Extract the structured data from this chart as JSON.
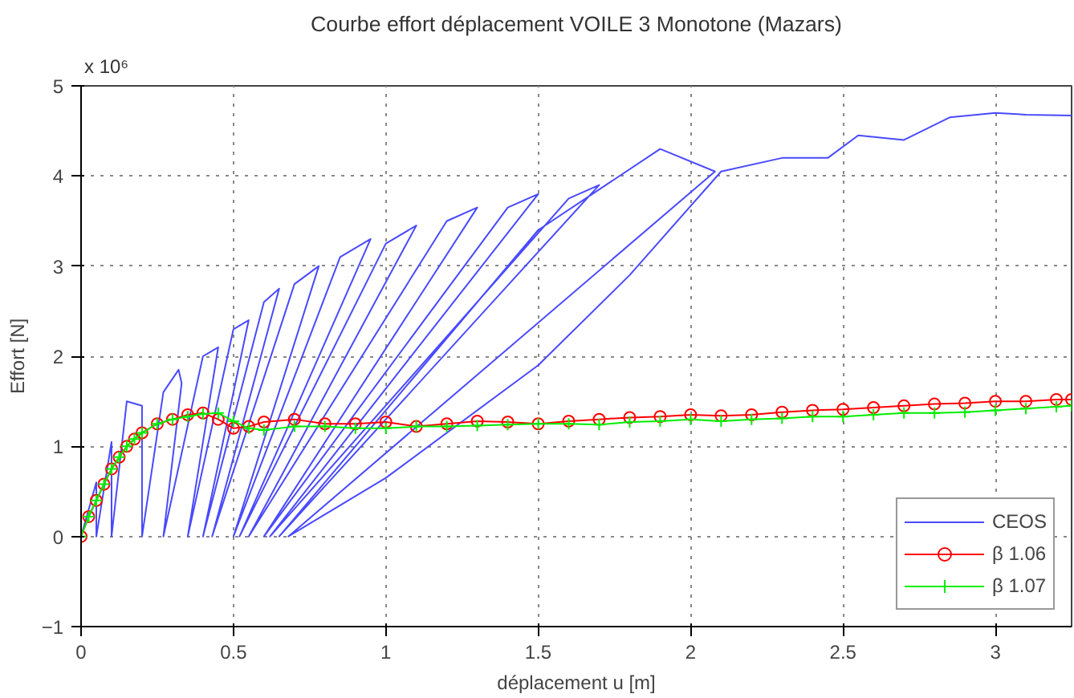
{
  "chart_data": {
    "type": "line",
    "title": "Courbe effort déplacement VOILE 3 Monotone (Mazars)",
    "xlabel": "déplacement u [m]",
    "ylabel": "Effort [N]",
    "annotations": [
      "x 10⁶"
    ],
    "xlim": [
      0,
      3.25
    ],
    "ylim": [
      -1,
      5
    ],
    "xticks": [
      0,
      0.5,
      1,
      1.5,
      2,
      2.5,
      3
    ],
    "yticks": [
      -1,
      0,
      1,
      2,
      3,
      4,
      5
    ],
    "grid": true,
    "legend": "bottom right",
    "series": [
      {
        "name": "CEOS",
        "color": "#4a4aff",
        "marker": "none",
        "x": [
          0,
          0.05,
          0.05,
          0.1,
          0.1,
          0.15,
          0.2,
          0.2,
          0.27,
          0.32,
          0.33,
          0.27,
          0.4,
          0.45,
          0.35,
          0.5,
          0.55,
          0.4,
          0.6,
          0.65,
          0.43,
          0.7,
          0.78,
          0.5,
          0.85,
          0.95,
          0.52,
          1.0,
          1.1,
          0.55,
          1.2,
          1.3,
          0.6,
          1.4,
          1.5,
          0.62,
          1.6,
          1.7,
          0.65,
          1.5,
          1.9,
          2.08,
          0.68,
          1.0,
          1.5,
          1.8,
          2.1,
          2.3,
          2.45,
          2.55,
          2.7,
          2.85,
          3.0,
          3.1,
          3.25
        ],
        "values": [
          0,
          0.6,
          0,
          1.05,
          0,
          1.5,
          1.45,
          0,
          1.6,
          1.85,
          1.7,
          0,
          2.0,
          2.1,
          0,
          2.3,
          2.4,
          0,
          2.6,
          2.75,
          0,
          2.8,
          3.0,
          0,
          3.1,
          3.3,
          0,
          3.25,
          3.45,
          0,
          3.5,
          3.65,
          0,
          3.65,
          3.8,
          0,
          3.75,
          3.9,
          0,
          3.4,
          4.3,
          4.05,
          0,
          0.65,
          1.9,
          2.9,
          4.05,
          4.2,
          4.2,
          4.45,
          4.4,
          4.65,
          4.7,
          4.68,
          4.67
        ]
      },
      {
        "name": "β 1.06",
        "color": "#ff0000",
        "marker": "circle",
        "x": [
          0,
          0.025,
          0.05,
          0.075,
          0.1,
          0.125,
          0.15,
          0.175,
          0.2,
          0.25,
          0.3,
          0.35,
          0.4,
          0.45,
          0.5,
          0.55,
          0.6,
          0.7,
          0.8,
          0.9,
          1.0,
          1.1,
          1.2,
          1.3,
          1.4,
          1.5,
          1.6,
          1.7,
          1.8,
          1.9,
          2.0,
          2.1,
          2.2,
          2.3,
          2.4,
          2.5,
          2.6,
          2.7,
          2.8,
          2.9,
          3.0,
          3.1,
          3.2,
          3.25
        ],
        "values": [
          0,
          0.22,
          0.4,
          0.58,
          0.75,
          0.88,
          1.0,
          1.08,
          1.15,
          1.25,
          1.3,
          1.35,
          1.37,
          1.3,
          1.2,
          1.22,
          1.27,
          1.3,
          1.25,
          1.25,
          1.27,
          1.22,
          1.25,
          1.28,
          1.27,
          1.25,
          1.28,
          1.3,
          1.32,
          1.33,
          1.35,
          1.34,
          1.35,
          1.38,
          1.4,
          1.41,
          1.43,
          1.45,
          1.47,
          1.48,
          1.5,
          1.5,
          1.52,
          1.52
        ]
      },
      {
        "name": "β 1.07",
        "color": "#00ee00",
        "marker": "cross",
        "x": [
          0,
          0.025,
          0.05,
          0.075,
          0.1,
          0.125,
          0.15,
          0.175,
          0.2,
          0.25,
          0.3,
          0.35,
          0.4,
          0.45,
          0.5,
          0.55,
          0.6,
          0.7,
          0.8,
          0.9,
          1.0,
          1.1,
          1.2,
          1.3,
          1.4,
          1.5,
          1.6,
          1.7,
          1.8,
          1.9,
          2.0,
          2.1,
          2.2,
          2.3,
          2.4,
          2.5,
          2.6,
          2.7,
          2.8,
          2.9,
          3.0,
          3.1,
          3.2,
          3.25
        ],
        "values": [
          0,
          0.22,
          0.4,
          0.58,
          0.75,
          0.88,
          1.0,
          1.08,
          1.15,
          1.25,
          1.3,
          1.33,
          1.36,
          1.37,
          1.28,
          1.2,
          1.18,
          1.22,
          1.22,
          1.2,
          1.2,
          1.22,
          1.22,
          1.23,
          1.24,
          1.25,
          1.25,
          1.24,
          1.27,
          1.28,
          1.3,
          1.28,
          1.3,
          1.31,
          1.33,
          1.33,
          1.35,
          1.37,
          1.37,
          1.38,
          1.4,
          1.42,
          1.44,
          1.45
        ]
      }
    ]
  }
}
